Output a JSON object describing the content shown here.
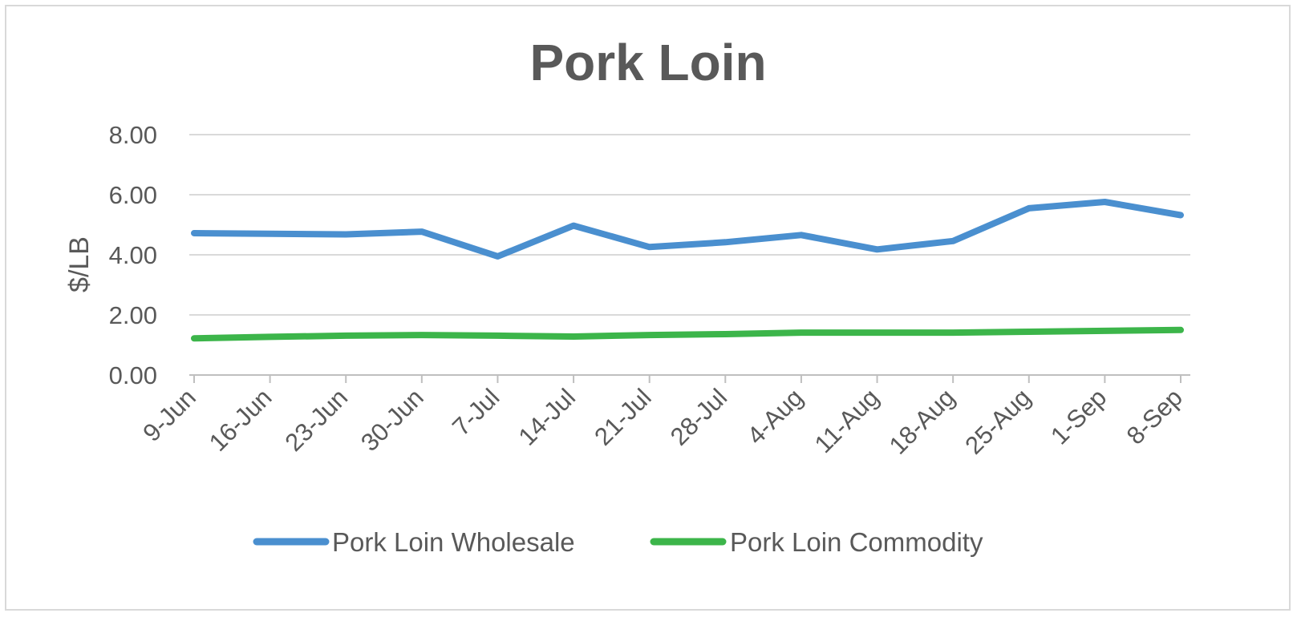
{
  "chart_data": {
    "type": "line",
    "title": "Pork Loin",
    "xlabel": "",
    "ylabel": "$/LB",
    "ylim": [
      0,
      8
    ],
    "yticks": [
      "0.00",
      "2.00",
      "4.00",
      "6.00",
      "8.00"
    ],
    "categories": [
      "9-Jun",
      "16-Jun",
      "23-Jun",
      "30-Jun",
      "7-Jul",
      "14-Jul",
      "21-Jul",
      "28-Jul",
      "4-Aug",
      "11-Aug",
      "18-Aug",
      "25-Aug",
      "1-Sep",
      "8-Sep"
    ],
    "series": [
      {
        "name": "Pork Loin Wholesale",
        "color": "#4a8fcf",
        "values": [
          4.72,
          4.7,
          4.68,
          4.77,
          3.95,
          4.97,
          4.26,
          4.42,
          4.66,
          4.18,
          4.46,
          5.55,
          5.76,
          5.32
        ]
      },
      {
        "name": "Pork Loin Commodity",
        "color": "#3cb54a",
        "values": [
          1.22,
          1.27,
          1.31,
          1.33,
          1.31,
          1.28,
          1.33,
          1.36,
          1.41,
          1.41,
          1.41,
          1.44,
          1.47,
          1.5
        ]
      }
    ],
    "grid": true,
    "legend_position": "bottom",
    "colors": {
      "grid": "#d9d9d9",
      "axis": "#bfbfbf",
      "text": "#595959"
    }
  }
}
